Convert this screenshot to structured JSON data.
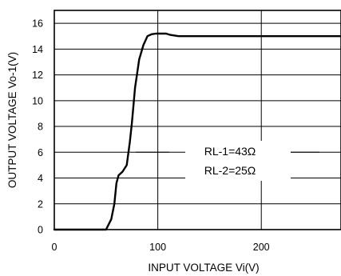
{
  "chart_data": {
    "type": "line",
    "title": "",
    "xlabel": "INPUT VOLTAGE Vi(V)",
    "ylabel": "OUTPUT VOLTAGE Vo-1(V)",
    "xlim": [
      0,
      277
    ],
    "ylim": [
      0,
      17
    ],
    "x_ticks": [
      "0",
      "100",
      "200"
    ],
    "y_ticks": [
      "0",
      "2",
      "4",
      "6",
      "8",
      "10",
      "12",
      "14",
      "16"
    ],
    "grid": true,
    "legend": "none",
    "annotations": [
      "RL-1=43Ω",
      "RL-2=25Ω"
    ],
    "series": [
      {
        "x": [
          0,
          50,
          55,
          58,
          60,
          62,
          66,
          70,
          73,
          75,
          78,
          82,
          86,
          90,
          94,
          98,
          102,
          108,
          112,
          120,
          150,
          200,
          277
        ],
        "y": [
          0,
          0,
          0.8,
          2.0,
          3.6,
          4.2,
          4.5,
          5.0,
          6.8,
          8.3,
          11.0,
          13.2,
          14.3,
          15.0,
          15.15,
          15.2,
          15.2,
          15.2,
          15.1,
          15.0,
          15.0,
          15.0,
          15.0
        ],
        "color": "#000000"
      }
    ]
  }
}
